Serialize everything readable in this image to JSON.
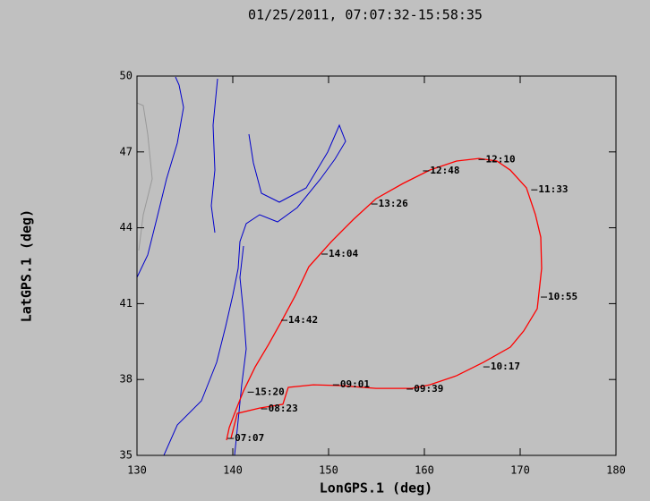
{
  "chart_data": {
    "type": "line",
    "title": "01/25/2011, 07:07:32-15:58:35",
    "x_label": "LonGPS.1 (deg)",
    "y_label": "LatGPS.1 (deg)",
    "xlim": [
      130,
      180
    ],
    "xticks": [
      130,
      140,
      150,
      160,
      170,
      180
    ],
    "ylim": [
      35,
      50
    ],
    "yticks": [
      35,
      38,
      41,
      44,
      47,
      50
    ],
    "series": [
      {
        "color": "#ff0000",
        "x": [
          139.81,
          140.47,
          142.8,
          145.23,
          145.79,
          148.41,
          151.21,
          154.95,
          158.69,
          160.56,
          163.36,
          166.17,
          168.97,
          170.37,
          171.78,
          172.24,
          172.15,
          171.59,
          170.65,
          168.97,
          167.57,
          165.7,
          163.36,
          160.56,
          157.76,
          154.95,
          152.62,
          150.28,
          147.94,
          146.54,
          145.14,
          143.74,
          142.34,
          141.12,
          140.19,
          139.63,
          139.35
        ],
        "values": [
          35.67,
          36.66,
          36.87,
          37.02,
          37.69,
          37.79,
          37.76,
          37.65,
          37.65,
          37.79,
          38.15,
          38.68,
          39.28,
          39.92,
          40.8,
          42.39,
          43.63,
          44.52,
          45.58,
          46.28,
          46.64,
          46.74,
          46.64,
          46.28,
          45.75,
          45.15,
          44.34,
          43.45,
          42.46,
          41.33,
          40.34,
          39.39,
          38.5,
          37.55,
          36.66,
          36.1,
          35.6
        ]
      }
    ],
    "annotations": [
      {
        "text": "07:07",
        "x": 140.2,
        "y": 35.67
      },
      {
        "text": "08:23",
        "x": 143.7,
        "y": 36.84
      },
      {
        "text": "09:01",
        "x": 151.2,
        "y": 37.79
      },
      {
        "text": "09:39",
        "x": 158.9,
        "y": 37.62
      },
      {
        "text": "10:17",
        "x": 166.9,
        "y": 38.5
      },
      {
        "text": "10:55",
        "x": 172.9,
        "y": 41.26
      },
      {
        "text": "11:33",
        "x": 171.9,
        "y": 45.5
      },
      {
        "text": "12:10",
        "x": 166.4,
        "y": 46.7
      },
      {
        "text": "12:48",
        "x": 160.6,
        "y": 46.25
      },
      {
        "text": "13:26",
        "x": 155.2,
        "y": 44.94
      },
      {
        "text": "14:04",
        "x": 150.0,
        "y": 42.96
      },
      {
        "text": "14:42",
        "x": 145.8,
        "y": 40.34
      },
      {
        "text": "15:20",
        "x": 142.3,
        "y": 37.5
      }
    ]
  }
}
